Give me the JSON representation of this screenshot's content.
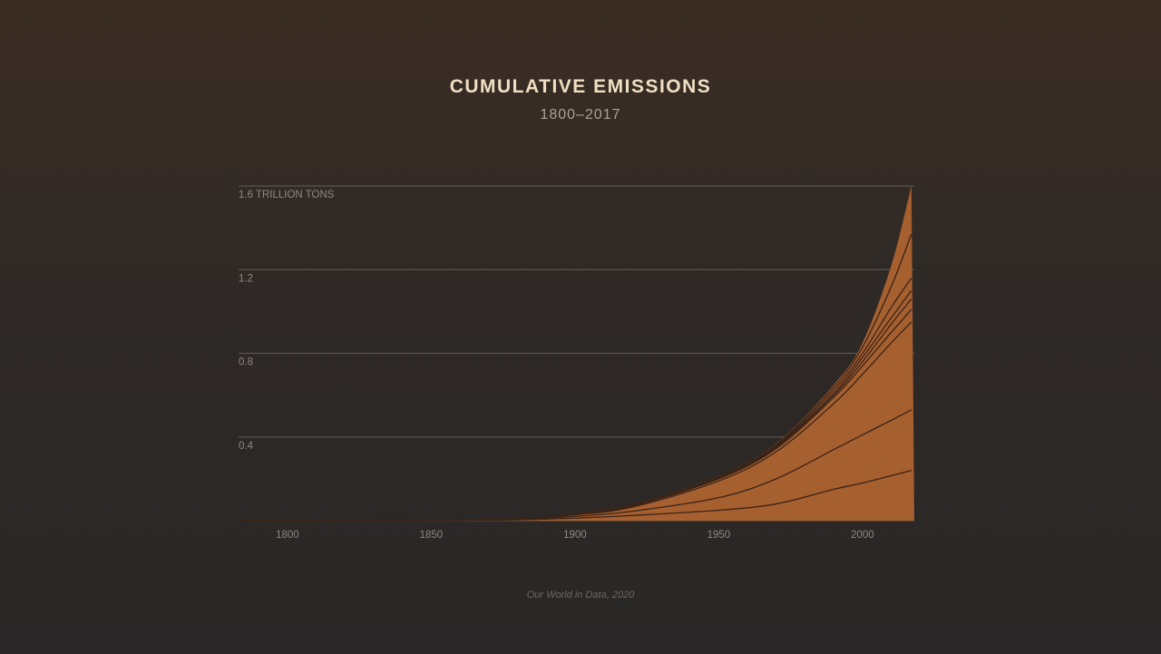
{
  "chart_data": {
    "type": "area",
    "title": "CUMULATIVE EMISSIONS",
    "subtitle": "1800–2017",
    "source": "Our World in Data, 2020",
    "ylabel": "",
    "xlabel": "",
    "xlim": [
      1783,
      2018
    ],
    "ylim": [
      0,
      1.6
    ],
    "grid": true,
    "y_ticks": [
      {
        "value": 0.4,
        "label": "0.4"
      },
      {
        "value": 0.8,
        "label": "0.8"
      },
      {
        "value": 1.2,
        "label": "1.2"
      },
      {
        "value": 1.6,
        "label": "1.6 TRILLION TONS"
      }
    ],
    "x_ticks": [
      {
        "value": 1800,
        "label": "1800"
      },
      {
        "value": 1850,
        "label": "1850"
      },
      {
        "value": 1900,
        "label": "1900"
      },
      {
        "value": 1950,
        "label": "1950"
      },
      {
        "value": 2000,
        "label": "2000"
      }
    ],
    "x": [
      1783,
      1850,
      1880,
      1900,
      1920,
      1950,
      1970,
      1990,
      2000,
      2010,
      2017
    ],
    "total": [
      0,
      0.003,
      0.01,
      0.035,
      0.08,
      0.215,
      0.37,
      0.65,
      0.85,
      1.22,
      1.6
    ],
    "stack_boundaries": [
      [
        0,
        0.001,
        0.004,
        0.012,
        0.025,
        0.05,
        0.08,
        0.15,
        0.18,
        0.215,
        0.24
      ],
      [
        0,
        0.002,
        0.006,
        0.02,
        0.045,
        0.11,
        0.2,
        0.34,
        0.41,
        0.48,
        0.53
      ],
      [
        0,
        0.0025,
        0.008,
        0.028,
        0.065,
        0.19,
        0.33,
        0.56,
        0.7,
        0.85,
        0.95
      ],
      [
        0,
        0.0026,
        0.0085,
        0.03,
        0.07,
        0.2,
        0.345,
        0.59,
        0.74,
        0.9,
        1.01
      ],
      [
        0,
        0.0027,
        0.009,
        0.031,
        0.072,
        0.203,
        0.35,
        0.6,
        0.76,
        0.94,
        1.06
      ],
      [
        0,
        0.0028,
        0.0092,
        0.032,
        0.074,
        0.206,
        0.355,
        0.61,
        0.78,
        0.97,
        1.1
      ],
      [
        0,
        0.0029,
        0.0095,
        0.033,
        0.076,
        0.209,
        0.36,
        0.625,
        0.8,
        1.02,
        1.16
      ],
      [
        0,
        0.003,
        0.0098,
        0.034,
        0.078,
        0.212,
        0.365,
        0.64,
        0.83,
        1.12,
        1.37
      ]
    ],
    "colors": {
      "fill": "#a65f2f",
      "line": "#3a2418",
      "grid": "#5a524c"
    }
  }
}
